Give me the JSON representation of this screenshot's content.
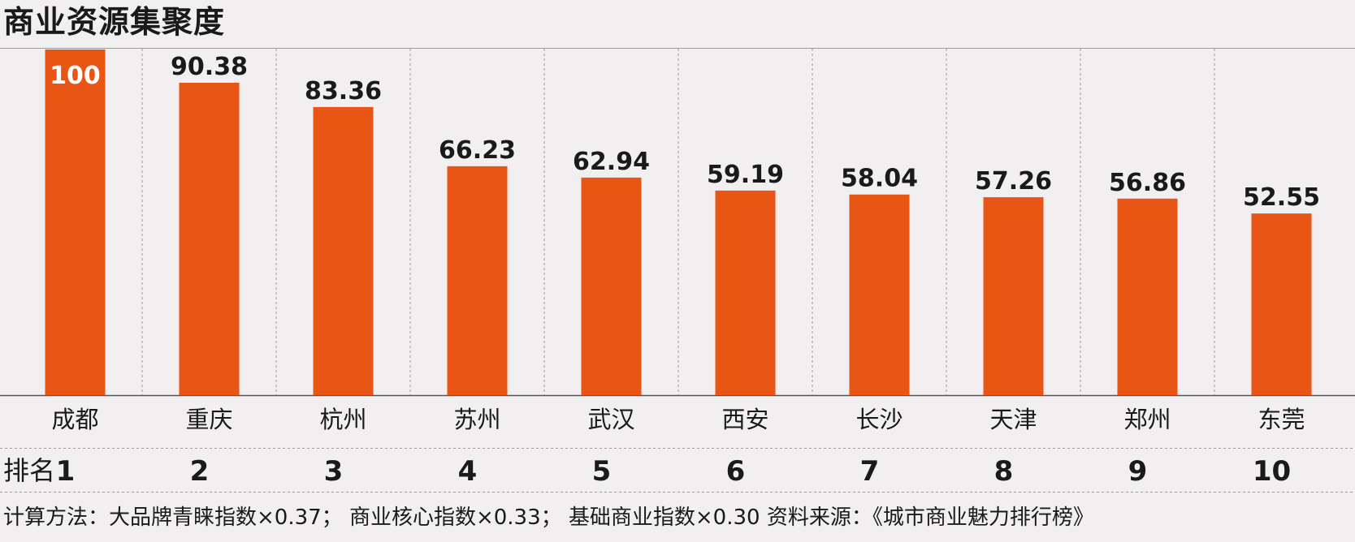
{
  "title": "商业资源集聚度",
  "rank_label": "排名",
  "footer": "计算方法：大品牌青睐指数×0.37；  商业核心指数×0.33；  基础商业指数×0.30    资料来源：《城市商业魅力排行榜》",
  "colors": {
    "bar": "#e85515",
    "background": "#f1efef",
    "text": "#1a1a1a",
    "grid": "#9a9a9a"
  },
  "chart_data": {
    "type": "bar",
    "title": "商业资源集聚度",
    "categories": [
      "成都",
      "重庆",
      "杭州",
      "苏州",
      "武汉",
      "西安",
      "长沙",
      "天津",
      "郑州",
      "东莞"
    ],
    "values": [
      100,
      90.38,
      83.36,
      66.23,
      62.94,
      59.19,
      58.04,
      57.26,
      56.86,
      52.55
    ],
    "value_labels": [
      "100",
      "90.38",
      "83.36",
      "66.23",
      "62.94",
      "59.19",
      "58.04",
      "57.26",
      "56.86",
      "52.55"
    ],
    "ranks": [
      "1",
      "2",
      "3",
      "4",
      "5",
      "6",
      "7",
      "8",
      "9",
      "10"
    ],
    "ylim": [
      0,
      100
    ],
    "grid": "vertical dashed separators",
    "legend": "none"
  }
}
